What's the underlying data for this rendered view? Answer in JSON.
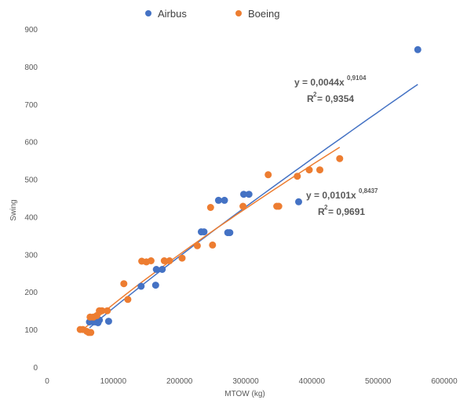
{
  "chart_data": {
    "type": "scatter",
    "title": "",
    "xlabel": "MTOW (kg)",
    "ylabel": "Swing",
    "xlim": [
      0,
      600000
    ],
    "ylim": [
      0,
      900
    ],
    "x_ticks": [
      "0",
      "100000",
      "200000",
      "300000",
      "400000",
      "500000",
      "600000"
    ],
    "y_ticks": [
      "0",
      "100",
      "200",
      "300",
      "400",
      "500",
      "600",
      "700",
      "800",
      "900"
    ],
    "grid": false,
    "legend_position": "top-center",
    "colors": {
      "Airbus": "#4472C4",
      "Boeing": "#ED7D31"
    },
    "series": [
      {
        "name": "Airbus",
        "points": [
          [
            64000,
            120
          ],
          [
            70000,
            120
          ],
          [
            73500,
            120
          ],
          [
            77000,
            118
          ],
          [
            79000,
            125
          ],
          [
            93000,
            122
          ],
          [
            142000,
            215
          ],
          [
            164000,
            218
          ],
          [
            165000,
            260
          ],
          [
            174000,
            260
          ],
          [
            233000,
            360
          ],
          [
            237000,
            360
          ],
          [
            259000,
            444
          ],
          [
            268000,
            444
          ],
          [
            273000,
            358
          ],
          [
            276000,
            358
          ],
          [
            297000,
            460
          ],
          [
            305000,
            460
          ],
          [
            380000,
            440
          ],
          [
            560000,
            845
          ]
        ],
        "trendline": {
          "equation": "y = 0,0044x",
          "exponent": "0,9104",
          "r2": "R",
          "r2_sup": "2",
          "r2_value": " = 0,9354",
          "a": 0.0044,
          "b": 0.9104,
          "x_range": [
            64000,
            560000
          ]
        }
      },
      {
        "name": "Boeing",
        "points": [
          [
            50000,
            100
          ],
          [
            54000,
            100
          ],
          [
            60000,
            95
          ],
          [
            63000,
            92
          ],
          [
            66000,
            92
          ],
          [
            65000,
            133
          ],
          [
            70000,
            133
          ],
          [
            75000,
            137
          ],
          [
            79000,
            150
          ],
          [
            83000,
            150
          ],
          [
            91000,
            150
          ],
          [
            116000,
            222
          ],
          [
            122000,
            180
          ],
          [
            143000,
            282
          ],
          [
            150000,
            280
          ],
          [
            157000,
            283
          ],
          [
            177000,
            283
          ],
          [
            185000,
            283
          ],
          [
            204000,
            290
          ],
          [
            227000,
            323
          ],
          [
            247000,
            425
          ],
          [
            250000,
            325
          ],
          [
            296000,
            428
          ],
          [
            334000,
            512
          ],
          [
            347000,
            428
          ],
          [
            350000,
            428
          ],
          [
            378000,
            508
          ],
          [
            396000,
            525
          ],
          [
            412000,
            525
          ],
          [
            442000,
            555
          ]
        ],
        "trendline": {
          "equation": "y = 0,0101x",
          "exponent": "0,8437",
          "r2": "R",
          "r2_sup": "2",
          "r2_value": " = 0,9691",
          "a": 0.0101,
          "b": 0.8437,
          "x_range": [
            50000,
            442000
          ]
        }
      }
    ]
  }
}
